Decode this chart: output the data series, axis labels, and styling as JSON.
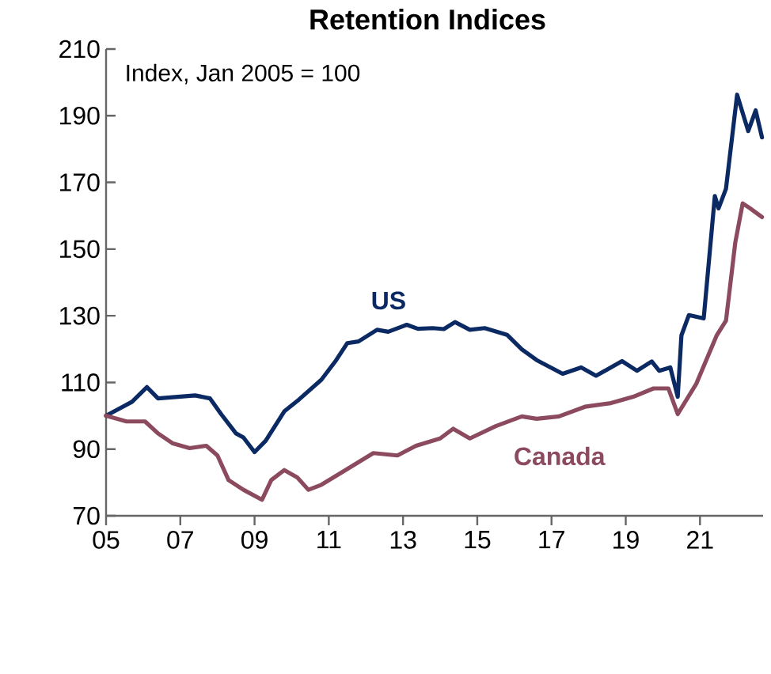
{
  "chart_data": {
    "type": "line",
    "title": "Retention Indices",
    "annotations": [
      "Index, Jan 2005 = 100"
    ],
    "xlim": [
      2005,
      2022.7
    ],
    "ylim": [
      70,
      210
    ],
    "xticks": [
      {
        "value": 2005,
        "label": "05"
      },
      {
        "value": 2007,
        "label": "07"
      },
      {
        "value": 2009,
        "label": "09"
      },
      {
        "value": 2011,
        "label": "11"
      },
      {
        "value": 2013,
        "label": "13"
      },
      {
        "value": 2015,
        "label": "15"
      },
      {
        "value": 2017,
        "label": "17"
      },
      {
        "value": 2019,
        "label": "19"
      },
      {
        "value": 2021,
        "label": "21"
      }
    ],
    "yticks": [
      70,
      90,
      110,
      130,
      150,
      170,
      190,
      210
    ],
    "grid": false,
    "legend": false,
    "marker": "none",
    "line_style": "solid",
    "series": [
      {
        "name": "US",
        "color": "#0b2a63",
        "x": [
          2005.0,
          2005.7,
          2006.1,
          2006.4,
          2007.4,
          2007.8,
          2008.1,
          2008.5,
          2008.7,
          2009.0,
          2009.3,
          2009.8,
          2010.2,
          2010.8,
          2011.2,
          2011.5,
          2011.8,
          2012.3,
          2012.6,
          2013.1,
          2013.4,
          2013.8,
          2014.1,
          2014.4,
          2014.8,
          2015.2,
          2015.8,
          2016.2,
          2016.6,
          2017.3,
          2017.8,
          2018.2,
          2018.9,
          2019.3,
          2019.7,
          2019.9,
          2020.2,
          2020.4,
          2020.5,
          2020.7,
          2021.1,
          2021.4,
          2021.5,
          2021.7,
          2022.0,
          2022.3,
          2022.5,
          2022.67
        ],
        "values": [
          100,
          104.2,
          108.6,
          105.2,
          106.1,
          105.2,
          100.5,
          94.7,
          93.5,
          89.1,
          92.5,
          101.3,
          104.9,
          110.8,
          116.7,
          121.8,
          122.3,
          125.8,
          125.2,
          127.3,
          126.1,
          126.3,
          126.0,
          128.1,
          125.8,
          126.3,
          124.3,
          119.9,
          116.7,
          112.6,
          114.5,
          112.0,
          116.4,
          113.5,
          116.3,
          113.5,
          114.5,
          105.7,
          124.1,
          130.2,
          129.2,
          165.9,
          162.2,
          168.1,
          196.3,
          185.4,
          191.6,
          183.5
        ]
      },
      {
        "name": "Canada",
        "color": "#8c4a5e",
        "x": [
          2005.0,
          2005.55,
          2006.05,
          2006.4,
          2006.8,
          2007.25,
          2007.7,
          2008.0,
          2008.3,
          2008.7,
          2009.2,
          2009.45,
          2009.8,
          2010.15,
          2010.45,
          2010.8,
          2011.45,
          2012.2,
          2012.85,
          2013.35,
          2014.0,
          2014.35,
          2014.8,
          2015.5,
          2016.2,
          2016.6,
          2017.2,
          2017.9,
          2018.6,
          2019.2,
          2019.75,
          2020.15,
          2020.4,
          2020.9,
          2021.45,
          2021.7,
          2021.95,
          2022.15,
          2022.35,
          2022.67
        ],
        "values": [
          100,
          98.3,
          98.3,
          94.7,
          91.7,
          90.3,
          91.0,
          88.1,
          80.7,
          77.8,
          74.8,
          80.7,
          83.7,
          81.5,
          77.8,
          79.3,
          83.7,
          88.8,
          88.1,
          91.0,
          93.2,
          96.1,
          93.2,
          96.9,
          99.8,
          99.1,
          99.8,
          102.7,
          103.8,
          105.7,
          108.2,
          108.2,
          100.5,
          109.6,
          124.1,
          128.5,
          151.9,
          163.7,
          162.2,
          159.6
        ]
      }
    ]
  }
}
